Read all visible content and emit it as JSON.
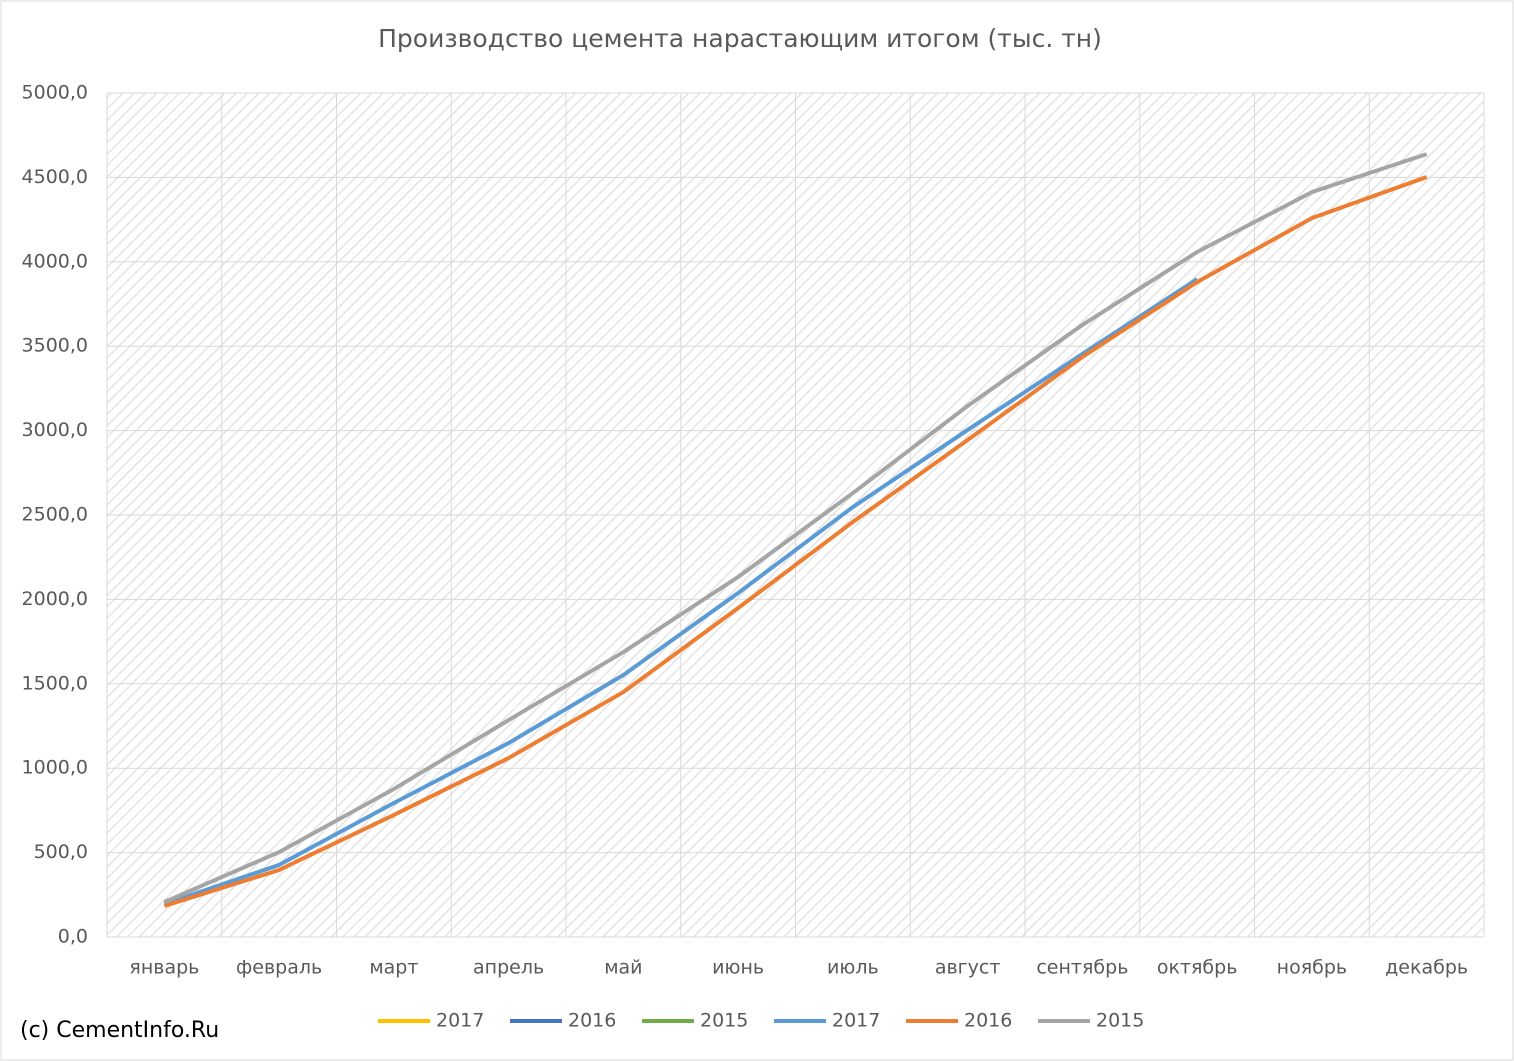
{
  "chart_data": {
    "type": "line",
    "title": "Производство цемента нарастающим итогом (тыс. тн)",
    "annotation": "(c) CementInfo.Ru",
    "categories": [
      "январь",
      "февраль",
      "март",
      "апрель",
      "май",
      "июнь",
      "июль",
      "август",
      "сентябрь",
      "октябрь",
      "ноябрь",
      "декабрь"
    ],
    "series": [
      {
        "name": "2017",
        "color": "#ffc000",
        "values": [
          null,
          null,
          null,
          null,
          null,
          null,
          null,
          null,
          null,
          null,
          null,
          null
        ]
      },
      {
        "name": "2016",
        "color": "#4472c4",
        "values": [
          null,
          null,
          null,
          null,
          null,
          null,
          null,
          null,
          null,
          null,
          null,
          null
        ]
      },
      {
        "name": "2015",
        "color": "#70ad47",
        "values": [
          null,
          null,
          null,
          null,
          null,
          null,
          null,
          null,
          null,
          null,
          null,
          null
        ]
      },
      {
        "name": "2017",
        "color": "#5b9bd5",
        "values": [
          195,
          427,
          794,
          1149,
          1552,
          2038,
          2547,
          3004,
          3454,
          3898,
          null,
          null
        ]
      },
      {
        "name": "2016",
        "color": "#ed7d31",
        "values": [
          184,
          397,
          723,
          1060,
          1451,
          1949,
          2459,
          2944,
          3436,
          3880,
          4259,
          4502
        ]
      },
      {
        "name": "2015",
        "color": "#a5a5a5",
        "values": [
          207,
          503,
          877,
          1285,
          1688,
          2133,
          2630,
          3146,
          3626,
          4058,
          4413,
          4638
        ]
      }
    ],
    "ylim": [
      0,
      5000
    ],
    "yticks": [
      {
        "value": 0,
        "label": "0,0"
      },
      {
        "value": 500,
        "label": "500,0"
      },
      {
        "value": 1000,
        "label": "1000,0"
      },
      {
        "value": 1500,
        "label": "1500,0"
      },
      {
        "value": 2000,
        "label": "2000,0"
      },
      {
        "value": 2500,
        "label": "2500,0"
      },
      {
        "value": 3000,
        "label": "3000,0"
      },
      {
        "value": 3500,
        "label": "3500,0"
      },
      {
        "value": 4000,
        "label": "4000,0"
      },
      {
        "value": 4500,
        "label": "4500,0"
      },
      {
        "value": 5000,
        "label": "5000,0"
      }
    ],
    "grid": true,
    "legend": "bottom"
  }
}
